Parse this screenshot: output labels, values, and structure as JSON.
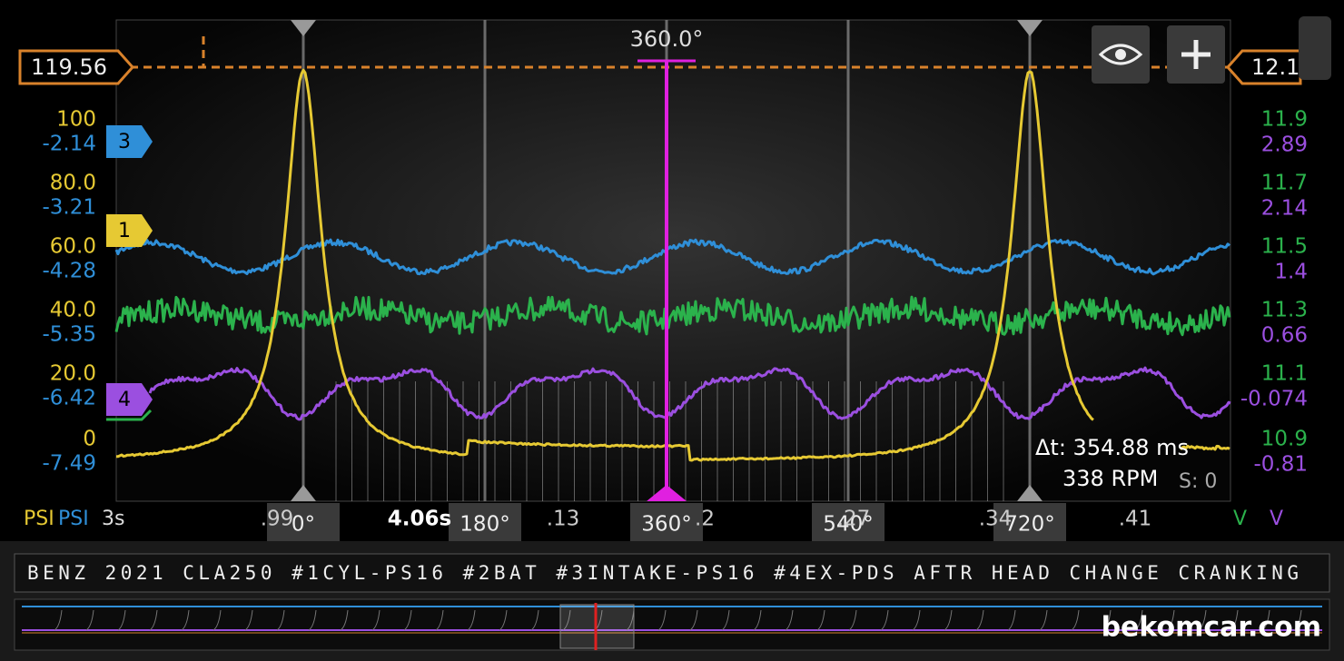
{
  "left_scale": {
    "yellow": [
      "100",
      "80.0",
      "60.0",
      "40.0",
      "20.0",
      "0"
    ],
    "blue": [
      "-2.14",
      "-3.21",
      "-4.28",
      "-5.35",
      "-6.42",
      "-7.49"
    ],
    "units": [
      "PSI",
      "PSI"
    ]
  },
  "right_scale": {
    "green": [
      "11.9",
      "11.7",
      "11.5",
      "11.3",
      "11.1",
      "10.9"
    ],
    "purple": [
      "2.89",
      "2.14",
      "1.4",
      "0.66",
      "-0.074",
      "-0.81"
    ],
    "units": [
      "V",
      "V"
    ]
  },
  "cursors": {
    "left_value": "119.56",
    "right_value": "12.1",
    "angle": "360.0°"
  },
  "channels": [
    "3",
    "1",
    "4"
  ],
  "time_axis": {
    "start": "3s",
    "labels": [
      ".99",
      "4.06s",
      ".13",
      ".2",
      ".27",
      ".34",
      ".41"
    ]
  },
  "degree_markers": [
    "0°",
    "180°",
    "360°",
    "540°",
    "720°"
  ],
  "measurement": {
    "delta_t": "Δt: 354.88 ms",
    "rpm": "338 RPM",
    "s": "S: 0"
  },
  "title_bar": "BENZ 2021 CLA250 #1CYL-PS16 #2BAT #3INTAKE-PS16 #4EX-PDS AFTR HEAD CHANGE CRANKING",
  "watermark": "bekomcar.com"
}
